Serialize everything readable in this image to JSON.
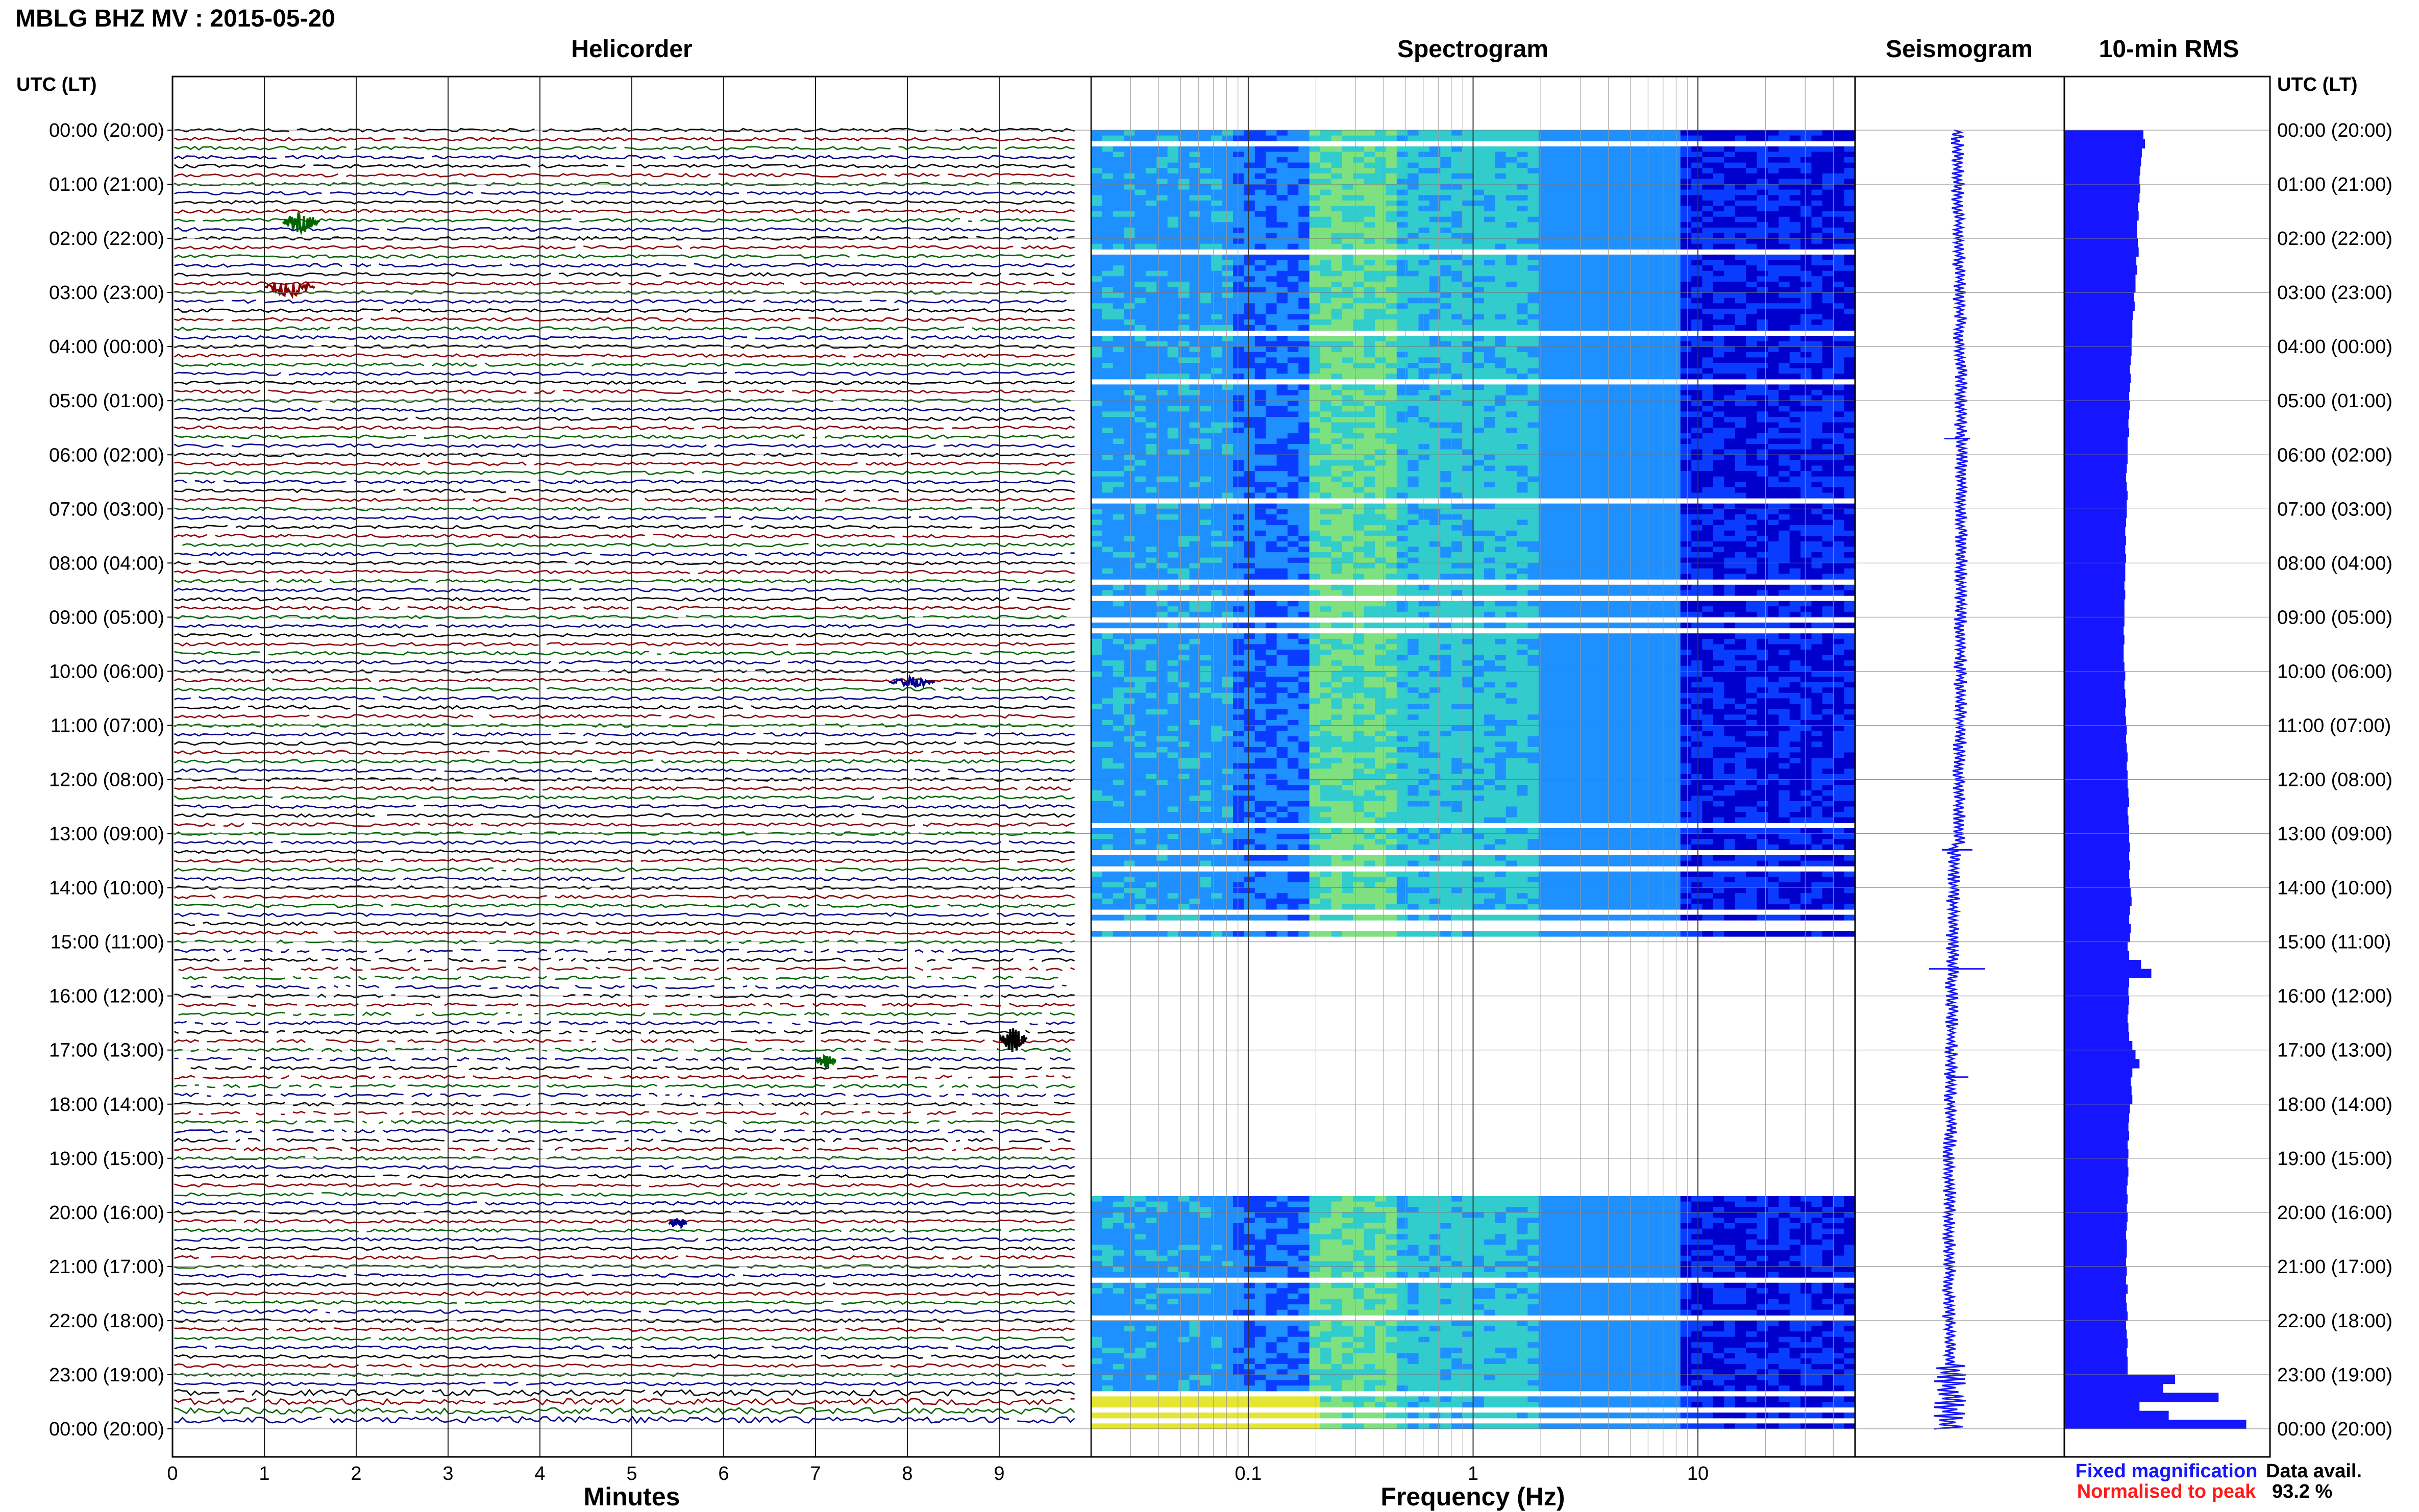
{
  "header": {
    "title": "MBLG BHZ MV : 2015-05-20"
  },
  "panels": {
    "helicorder": "Helicorder",
    "spectrogram": "Spectrogram",
    "seismogram": "Seismogram",
    "rms": "10-min RMS"
  },
  "axes": {
    "left_header": "UTC (LT)",
    "right_header": "UTC (LT)",
    "minutes_label": "Minutes",
    "frequency_label": "Frequency (Hz)"
  },
  "legend": {
    "fixed": "Fixed magnification",
    "normalised": "Normalised to peak",
    "fixed_color": "#1515ff",
    "normalised_color": "#ff1a1a"
  },
  "availability": {
    "label": "Data avail.",
    "value": "93.2 %"
  },
  "chart_data": [
    {
      "type": "line",
      "panel": "Helicorder",
      "xlabel": "Minutes",
      "x_ticks": [
        "0",
        "1",
        "2",
        "3",
        "4",
        "5",
        "6",
        "7",
        "8",
        "9"
      ],
      "xlim": [
        0,
        10
      ],
      "rows_per_hour": 6,
      "trace_colors": [
        "#000000",
        "#8b0000",
        "#006400",
        "#00008b"
      ],
      "time_labels": [
        "00:00 (20:00)",
        "01:00 (21:00)",
        "02:00 (22:00)",
        "03:00 (23:00)",
        "04:00 (00:00)",
        "05:00 (01:00)",
        "06:00 (02:00)",
        "07:00 (03:00)",
        "08:00 (04:00)",
        "09:00 (05:00)",
        "10:00 (06:00)",
        "11:00 (07:00)",
        "12:00 (08:00)",
        "13:00 (09:00)",
        "14:00 (10:00)",
        "15:00 (11:00)",
        "16:00 (12:00)",
        "17:00 (13:00)",
        "18:00 (14:00)",
        "19:00 (15:00)",
        "20:00 (16:00)",
        "21:00 (17:00)",
        "22:00 (18:00)",
        "23:00 (19:00)",
        "00:00 (20:00)"
      ],
      "gappy_hours_utc": [
        15,
        19
      ]
    },
    {
      "type": "heatmap",
      "panel": "Spectrogram",
      "xlabel": "Frequency (Hz)",
      "x_scale": "log",
      "x_ticks": [
        "0.1",
        "1",
        "10"
      ],
      "xlim": [
        0.02,
        50
      ],
      "data_gap_utc": [
        "14:50",
        "19:40"
      ],
      "colors": [
        "#0000cc",
        "#0a3cff",
        "#1e90ff",
        "#33cccc",
        "#7fe07f",
        "#e5e533",
        "#ff9900"
      ]
    },
    {
      "type": "line",
      "panel": "Seismogram",
      "note_color": "#1515ff"
    },
    {
      "type": "bar",
      "panel": "10-min RMS",
      "orientation": "horizontal",
      "color": "#1515ff",
      "bins_per_hour": 6,
      "values": [
        1.0,
        1.02,
        0.98,
        0.97,
        0.96,
        0.95,
        0.96,
        0.95,
        0.93,
        0.94,
        0.92,
        0.92,
        0.93,
        0.94,
        0.91,
        0.92,
        0.9,
        0.9,
        0.88,
        0.89,
        0.87,
        0.86,
        0.86,
        0.85,
        0.85,
        0.84,
        0.83,
        0.84,
        0.83,
        0.82,
        0.83,
        0.82,
        0.81,
        0.82,
        0.8,
        0.8,
        0.8,
        0.79,
        0.78,
        0.79,
        0.8,
        0.79,
        0.79,
        0.78,
        0.77,
        0.78,
        0.77,
        0.78,
        0.77,
        0.77,
        0.76,
        0.77,
        0.76,
        0.76,
        0.76,
        0.75,
        0.76,
        0.75,
        0.75,
        0.76,
        0.77,
        0.76,
        0.77,
        0.78,
        0.77,
        0.78,
        0.79,
        0.78,
        0.79,
        0.8,
        0.79,
        0.8,
        0.8,
        0.81,
        0.82,
        0.8,
        0.81,
        0.82,
        0.82,
        0.83,
        0.82,
        0.83,
        0.82,
        0.83,
        0.84,
        0.85,
        0.83,
        0.82,
        0.84,
        0.83,
        0.8,
        0.82,
        0.97,
        1.1,
        0.82,
        0.81,
        0.82,
        0.81,
        0.8,
        0.81,
        0.82,
        0.86,
        0.9,
        0.95,
        0.86,
        0.84,
        0.85,
        0.86,
        0.83,
        0.82,
        0.81,
        0.82,
        0.8,
        0.81,
        0.8,
        0.81,
        0.8,
        0.79,
        0.8,
        0.79,
        0.8,
        0.79,
        0.78,
        0.79,
        0.79,
        0.78,
        0.79,
        0.78,
        0.8,
        0.78,
        0.79,
        0.8,
        0.78,
        0.79,
        0.8,
        0.79,
        0.8,
        0.8,
        1.4,
        1.25,
        1.95,
        0.95,
        1.32,
        2.3
      ],
      "xlim": [
        0,
        2.6
      ]
    }
  ]
}
